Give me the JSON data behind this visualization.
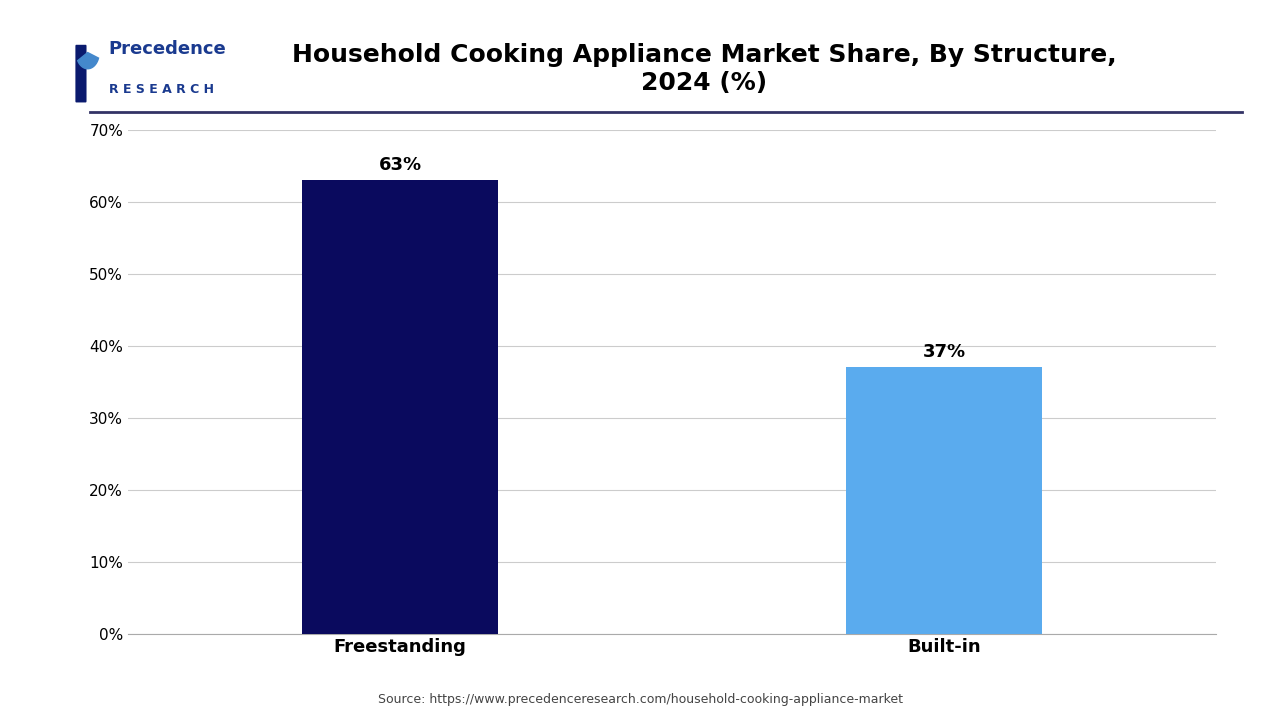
{
  "title": "Household Cooking Appliance Market Share, By Structure,\n2024 (%)",
  "categories": [
    "Freestanding",
    "Built-in"
  ],
  "values": [
    63,
    37
  ],
  "bar_colors": [
    "#0a0a5e",
    "#5aabee"
  ],
  "value_labels": [
    "63%",
    "37%"
  ],
  "ylim": [
    0,
    70
  ],
  "yticks": [
    0,
    10,
    20,
    30,
    40,
    50,
    60,
    70
  ],
  "ytick_labels": [
    "0%",
    "10%",
    "20%",
    "30%",
    "40%",
    "50%",
    "60%",
    "70%"
  ],
  "background_color": "#ffffff",
  "grid_color": "#cccccc",
  "title_fontsize": 18,
  "label_fontsize": 13,
  "value_fontsize": 13,
  "source_text": "Source: https://www.precedenceresearch.com/household-cooking-appliance-market",
  "logo_precedence_color": "#1a3a8f",
  "logo_research_color": "#1a3a8f",
  "logo_icon_dark": "#0a1a6e",
  "logo_icon_blue": "#4488cc"
}
